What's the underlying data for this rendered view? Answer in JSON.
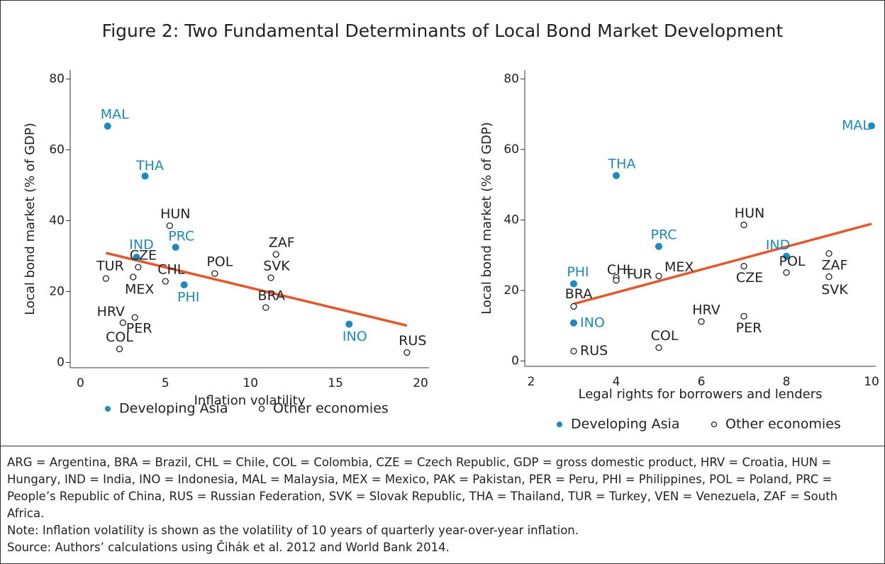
{
  "title": "Figure 2: Two Fundamental Determinants of Local Bond Market Development",
  "notes": [
    "ARG = Argentina, BRA = Brazil, CHL = Chile, COL = Colombia, CZE = Czech Republic, GDP = gross domestic product, HRV = Croatia, HUN = Hungary, IND = India, INO = Indonesia, MAL = Malaysia, MEX = Mexico, PAK = Pakistan, PER = Peru, PHI = Philippines, POL = Poland, PRC = People’s Republic of China, RUS = Russian Federation, SVK = Slovak Republic, THA = Thailand, TUR = Turkey, VEN = Venezuela, ZAF = South Africa.",
    "Note: Inflation volatility is shown as the volatility of 10 years of quarterly year-over-year inflation.",
    "Source: Authors’ calculations using Čihák et al. 2012 and World Bank 2014."
  ],
  "chart_data": [
    {
      "type": "scatter",
      "x_label": "Inflation volatility",
      "y_label": "Local bond market (% of GDP)",
      "xlim": [
        -0.6,
        20.5
      ],
      "ylim": [
        -1.5,
        82.5
      ],
      "xticks": [
        0,
        5,
        10,
        15,
        20
      ],
      "yticks": [
        0,
        20,
        40,
        60,
        80
      ],
      "legend": "bottom",
      "series": [
        {
          "name": "Developing Asia",
          "color": "#1b8ac0",
          "marker": "filled",
          "labels": [
            "MAL",
            "THA",
            "IND",
            "PRC",
            "PHI",
            "INO"
          ],
          "x": [
            1.6,
            3.8,
            3.3,
            5.6,
            6.1,
            15.8
          ],
          "values": [
            66.7,
            52.6,
            29.7,
            32.5,
            21.9,
            10.8
          ]
        },
        {
          "name": "Other economies",
          "color": "#222222",
          "marker": "open",
          "labels": [
            "HUN",
            "ZAF",
            "CZE",
            "TUR",
            "MEX",
            "CHL",
            "POL",
            "SVK",
            "BRA",
            "HRV",
            "PER",
            "COL",
            "RUS"
          ],
          "x": [
            5.25,
            11.5,
            3.4,
            1.5,
            3.1,
            5.0,
            7.9,
            11.2,
            10.9,
            2.5,
            3.2,
            2.3,
            19.2
          ],
          "values": [
            38.6,
            30.5,
            26.9,
            23.7,
            24.1,
            22.9,
            25.1,
            23.9,
            15.5,
            11.2,
            12.7,
            3.8,
            2.8
          ]
        }
      ],
      "trendline": {
        "color": "#e2592b",
        "x": [
          1.5,
          19.2
        ],
        "values": [
          30.9,
          10.4
        ]
      }
    },
    {
      "type": "scatter",
      "x_label": "Legal rights for borrowers and lenders",
      "y_label": "Local bond market (% of GDP)",
      "xlim": [
        1.85,
        10.1
      ],
      "ylim": [
        -1.5,
        82.5
      ],
      "xticks": [
        2,
        4,
        6,
        8,
        10
      ],
      "yticks": [
        0,
        20,
        40,
        60,
        80
      ],
      "legend": "bottom",
      "series": [
        {
          "name": "Developing Asia",
          "color": "#1b8ac0",
          "marker": "filled",
          "labels": [
            "MAL",
            "THA",
            "IND",
            "PRC",
            "PHI",
            "INO"
          ],
          "x": [
            10,
            4,
            8,
            5,
            3,
            3
          ],
          "values": [
            66.7,
            52.6,
            29.7,
            32.5,
            21.9,
            10.8
          ]
        },
        {
          "name": "Other economies",
          "color": "#222222",
          "marker": "open",
          "labels": [
            "HUN",
            "ZAF",
            "CZE",
            "TUR",
            "MEX",
            "CHL",
            "POL",
            "SVK",
            "BRA",
            "HRV",
            "PER",
            "COL",
            "RUS"
          ],
          "x": [
            7,
            9,
            7,
            4,
            5,
            4,
            8,
            9,
            3,
            6,
            7,
            5,
            3
          ],
          "values": [
            38.6,
            30.5,
            26.9,
            23.7,
            24.1,
            22.9,
            25.1,
            23.9,
            15.5,
            11.2,
            12.7,
            3.8,
            2.8
          ]
        }
      ],
      "trendline": {
        "color": "#e2592b",
        "x": [
          3,
          10
        ],
        "values": [
          16.2,
          38.9
        ]
      }
    }
  ]
}
